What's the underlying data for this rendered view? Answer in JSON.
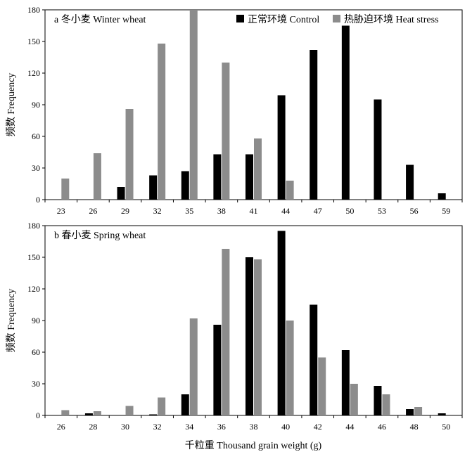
{
  "figure": {
    "xlabel": "千粒重 Thousand grain weight (g)"
  },
  "legend": {
    "items": [
      {
        "label": "正常环境 Control",
        "color": "#000000"
      },
      {
        "label": "热胁迫环境 Heat stress",
        "color": "#8c8c8c"
      }
    ]
  },
  "chart_data": [
    {
      "type": "bar",
      "title": "a 冬小麦 Winter wheat",
      "ylabel": "频数 Frequency",
      "ylim": [
        0,
        180
      ],
      "yticks": [
        0,
        30,
        60,
        90,
        120,
        150,
        180
      ],
      "categories": [
        "23",
        "26",
        "29",
        "32",
        "35",
        "38",
        "41",
        "44",
        "47",
        "50",
        "53",
        "56",
        "59"
      ],
      "series": [
        {
          "name": "正常环境 Control",
          "color": "#000000",
          "values": [
            0,
            0,
            12,
            23,
            27,
            43,
            43,
            99,
            142,
            165,
            95,
            33,
            6
          ]
        },
        {
          "name": "热胁迫环境 Heat stress",
          "color": "#8c8c8c",
          "values": [
            20,
            44,
            86,
            148,
            185,
            130,
            58,
            18,
            0,
            0,
            0,
            0,
            0
          ]
        }
      ],
      "legend_position": "top-right",
      "grid": false
    },
    {
      "type": "bar",
      "title": "b 春小麦 Spring wheat",
      "ylabel": "频数 Frequency",
      "ylim": [
        0,
        180
      ],
      "yticks": [
        0,
        30,
        60,
        90,
        120,
        150,
        180
      ],
      "categories": [
        "26",
        "28",
        "30",
        "32",
        "34",
        "36",
        "38",
        "40",
        "42",
        "44",
        "46",
        "48",
        "50"
      ],
      "series": [
        {
          "name": "正常环境 Control",
          "color": "#000000",
          "values": [
            0,
            2,
            0,
            1,
            20,
            86,
            150,
            175,
            105,
            62,
            28,
            6,
            2
          ]
        },
        {
          "name": "热胁迫环境 Heat stress",
          "color": "#8c8c8c",
          "values": [
            5,
            4,
            9,
            17,
            92,
            158,
            148,
            90,
            55,
            30,
            20,
            8,
            0
          ]
        }
      ],
      "grid": false
    }
  ]
}
